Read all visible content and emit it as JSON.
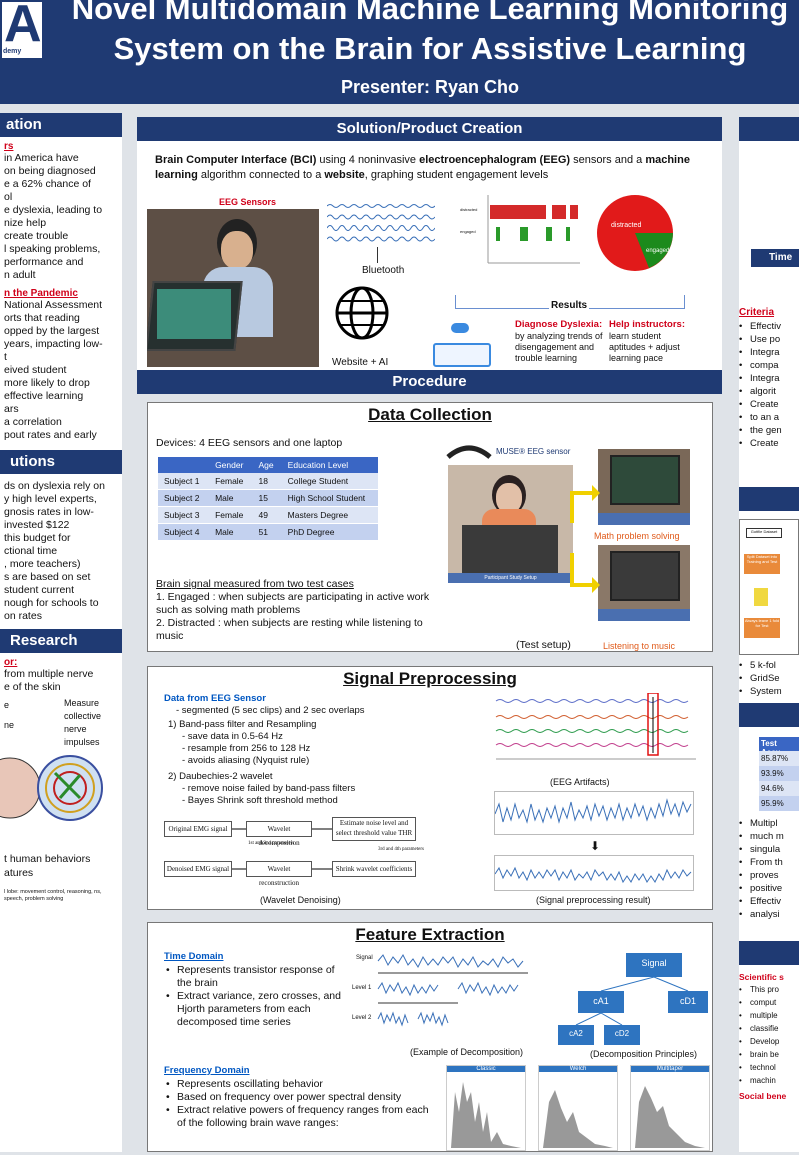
{
  "header": {
    "logo_letter": "A",
    "logo_sub": "demy",
    "title_line1": "Novel Multidomain Machine Learning Monitoring",
    "title_line2": "System on the Brain for Assistive Learning",
    "presenter": "Presenter: Ryan Cho"
  },
  "left": {
    "intro_title": "ation",
    "s1_heading": "rs",
    "s1_lines": [
      "in America have",
      "on being diagnosed",
      "e a 62% chance of",
      "ol",
      "e dyslexia, leading to",
      "nize help",
      "create trouble",
      "l speaking problems,",
      "performance and",
      "n adult"
    ],
    "s2_heading": "n the Pandemic",
    "s2_lines": [
      "National Assessment",
      "orts that reading",
      "opped by the largest",
      "years, impacting low-",
      "t",
      "eived student",
      "",
      "more likely to drop",
      "effective learning",
      "ars",
      "a correlation",
      "pout rates and early"
    ],
    "sol_title": "utions",
    "sol_lines": [
      "ds on dyslexia rely on",
      "y high level experts,",
      "gnosis rates in low-",
      "",
      "invested $122",
      "this budget for",
      "ctional time",
      ", more teachers)",
      "s are based on set",
      "student current",
      "",
      "nough for schools to",
      "on rates"
    ],
    "res_title": "Research",
    "res_heading": "or:",
    "res_lines": [
      "from multiple nerve",
      "e of the skin"
    ],
    "measure_label": "Measure collective nerve impulses",
    "e_label": "e",
    "ne_label": "ne",
    "bottom_lines": [
      "t human behaviors",
      "atures"
    ],
    "tiny_note": "l lobe: movement control, reasoning, ns, speech, problem solving"
  },
  "solution": {
    "title": "Solution/Product Creation",
    "bci_text": "Brain Computer Interface (BCI) using 4 noninvasive electroencephalogram (EEG) sensors and a machine learning algorithm connected to a website, graphing student engagement levels",
    "eeg_label": "EEG Sensors",
    "bluetooth": "Bluetooth",
    "website": "Website + AI",
    "results": "Results",
    "distracted": "distracted",
    "engaged": "engaged",
    "chart_row1": "distracted",
    "chart_row2": "engaged",
    "diag_title": "Diagnose Dyslexia:",
    "diag_text": "by analyzing trends of disengagement and trouble learning",
    "help_title": "Help instructors:",
    "help_text": "learn student aptitudes + adjust learning pace"
  },
  "procedure": {
    "title": "Procedure",
    "dc_title": "Data Collection",
    "devices": "Devices: 4 EEG sensors and one laptop",
    "table_headers": [
      "",
      "Gender",
      "Age",
      "Education Level"
    ],
    "table_rows": [
      [
        "Subject 1",
        "Female",
        "18",
        "College Student"
      ],
      [
        "Subject 2",
        "Male",
        "15",
        "High School Student"
      ],
      [
        "Subject 3",
        "Female",
        "49",
        "Masters Degree"
      ],
      [
        "Subject 4",
        "Male",
        "51",
        "PhD Degree"
      ]
    ],
    "muse": "MUSE® EEG sensor",
    "math": "Math problem solving",
    "music": "Listening to music",
    "test_setup": "(Test setup)",
    "participant": "Participant Study Setup",
    "signal_heading": "Brain signal measured from two test cases",
    "case1": "1. Engaged :  when subjects are participating in active work such as solving math problems",
    "case2": " 2. Distracted : when subjects are resting while listening to music"
  },
  "signal": {
    "title": "Signal Preprocessing",
    "from": "Data from EEG Sensor",
    "seg": "- segmented (5 sec clips) and 2 sec overlaps",
    "step1": "1) Band-pass filter and Resampling",
    "s1a": "- save data in 0.5-64 Hz",
    "s1b": "- resample from 256 to 128 Hz",
    "s1c": "- avoids aliasing (Nyquist rule)",
    "step2": "2) Daubechies-2 wavelet",
    "s2a": "- remove noise failed by band-pass filters",
    "s2b": "- Bayes Shrink soft threshold method",
    "artifacts": "(EEG Artifacts)",
    "result": "(Signal preprocessing result)",
    "wavelet": "(Wavelet Denoising)",
    "fb_original": "Original EMG signal",
    "fb_decomp": "Wavelet decomposition",
    "fb_estimate": "Estimate noise level and select threshold value THR",
    "fb_denoised": "Denoised EMG signal",
    "fb_recon": "Wavelet reconstruction",
    "fb_shrink": "Shrink wavelet coefficients",
    "fb_params1": "1st and 2nd parameters",
    "fb_params2": "3rd and 4th parameters"
  },
  "feature": {
    "title": "Feature Extraction",
    "time_heading": "Time Domain",
    "time_bullets": [
      "Represents transistor response of the brain",
      "Extract variance, zero crosses, and Hjorth parameters from each decomposed time series"
    ],
    "example": "(Example of Decomposition)",
    "principles": "(Decomposition Principles)",
    "freq_heading": "Frequency Domain",
    "freq_bullets": [
      "Represents oscillating behavior",
      "Based on frequency over power spectral density",
      "Extract relative powers of frequency ranges from each of the following brain wave ranges:"
    ],
    "psd_titles": [
      "Classic",
      "Welch",
      "Multitaper"
    ],
    "tree": {
      "signal": "Signal",
      "ca1": "cA1",
      "cd1": "cD1",
      "ca2": "cA2",
      "cd2": "cD2"
    },
    "level_labels": [
      "Signal",
      "Level 1",
      "Level 2"
    ]
  },
  "right": {
    "time_label": "Time",
    "criteria": "Criteria",
    "criteria_items": [
      "Effectiv",
      "Use po",
      "Integra",
      "compa",
      "Integra",
      "algorit",
      "Create",
      "to an a",
      "the gen",
      "Create"
    ],
    "kfold": [
      "5 k-fol",
      "GridSe",
      "System"
    ],
    "test_acc": "Test Accu",
    "acc_values": [
      "85.87%",
      "93.9%",
      "94.6%",
      "95.9%"
    ],
    "bullets": [
      "Multipl",
      "much m",
      "singula",
      "From th",
      "proves",
      "positive",
      "Effectiv",
      "analysi"
    ],
    "sci": "Scientific s",
    "sci_items": [
      "This pro",
      "comput",
      "multiple",
      "classifie",
      "Develop",
      "brain be",
      "technol",
      "machin"
    ],
    "social": "Social bene",
    "flow_first": "Gotfile Dataset",
    "flow_split": "Split Dataset into Training and Test",
    "flow_leave": "Always leave 1 fold for Test"
  }
}
